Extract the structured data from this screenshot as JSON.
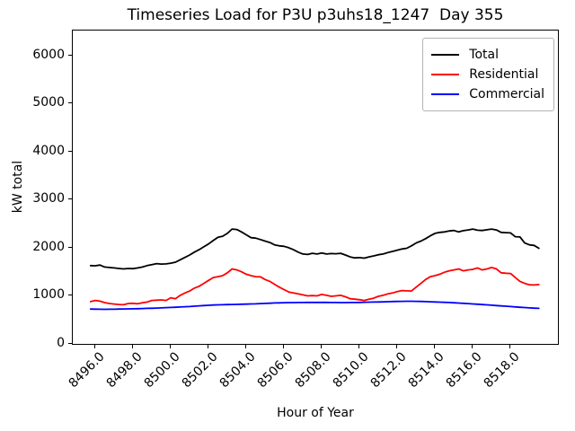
{
  "chart_data": {
    "type": "line",
    "title": "Timeseries Load for P3U p3uhs18_1247  Day 355",
    "xlabel": "Hour of Year",
    "ylabel": "kW total",
    "xlim": [
      8494.81,
      8520.51
    ],
    "ylim": [
      0,
      6520
    ],
    "grid": false,
    "legend_position": "upper right",
    "x_tick_values": [
      8496,
      8498,
      8500,
      8502,
      8504,
      8506,
      8508,
      8510,
      8512,
      8514,
      8516,
      8518
    ],
    "x_tick_labels": [
      "8496.0",
      "8498.0",
      "8500.0",
      "8502.0",
      "8504.0",
      "8506.0",
      "8508.0",
      "8510.0",
      "8512.0",
      "8514.0",
      "8516.0",
      "8518.0"
    ],
    "y_tick_values": [
      0,
      1000,
      2000,
      3000,
      4000,
      5000,
      6000
    ],
    "y_tick_labels": [
      "0",
      "1000",
      "2000",
      "3000",
      "4000",
      "5000",
      "6000"
    ],
    "x_start": 8495.75,
    "x_step": 0.25,
    "series": [
      {
        "name": "Total",
        "color": "#000000",
        "values": [
          1630,
          1625,
          1640,
          1600,
          1590,
          1580,
          1570,
          1560,
          1570,
          1565,
          1580,
          1600,
          1630,
          1650,
          1670,
          1660,
          1665,
          1680,
          1700,
          1750,
          1800,
          1850,
          1910,
          1960,
          2020,
          2080,
          2150,
          2220,
          2240,
          2300,
          2390,
          2380,
          2330,
          2270,
          2210,
          2200,
          2170,
          2140,
          2110,
          2060,
          2040,
          2030,
          2000,
          1960,
          1910,
          1870,
          1860,
          1885,
          1870,
          1890,
          1870,
          1880,
          1875,
          1885,
          1850,
          1810,
          1790,
          1795,
          1785,
          1810,
          1830,
          1855,
          1870,
          1900,
          1925,
          1950,
          1975,
          1990,
          2040,
          2100,
          2140,
          2190,
          2250,
          2300,
          2320,
          2330,
          2350,
          2360,
          2330,
          2355,
          2370,
          2390,
          2365,
          2360,
          2375,
          2390,
          2370,
          2320,
          2315,
          2310,
          2230,
          2225,
          2100,
          2060,
          2050,
          1990
        ]
      },
      {
        "name": "Residential",
        "color": "#ff0000",
        "values": [
          880,
          905,
          890,
          860,
          840,
          830,
          820,
          815,
          840,
          845,
          835,
          855,
          870,
          905,
          910,
          915,
          905,
          960,
          940,
          1010,
          1060,
          1100,
          1160,
          1200,
          1260,
          1320,
          1380,
          1400,
          1420,
          1480,
          1560,
          1540,
          1500,
          1450,
          1420,
          1400,
          1395,
          1340,
          1300,
          1240,
          1180,
          1130,
          1080,
          1060,
          1040,
          1020,
          1000,
          1005,
          1000,
          1030,
          1010,
          990,
          1000,
          1010,
          980,
          940,
          930,
          920,
          905,
          930,
          950,
          990,
          1010,
          1040,
          1060,
          1090,
          1110,
          1105,
          1100,
          1180,
          1260,
          1340,
          1400,
          1420,
          1450,
          1490,
          1520,
          1540,
          1560,
          1520,
          1540,
          1550,
          1580,
          1540,
          1560,
          1590,
          1560,
          1480,
          1470,
          1465,
          1380,
          1300,
          1260,
          1230,
          1225,
          1235
        ]
      },
      {
        "name": "Commercial",
        "color": "#0000ff",
        "values": [
          725,
          723,
          721,
          720,
          721,
          722,
          724,
          726,
          728,
          730,
          733,
          736,
          739,
          742,
          746,
          750,
          754,
          758,
          763,
          768,
          773,
          778,
          785,
          792,
          798,
          804,
          808,
          812,
          815,
          818,
          820,
          822,
          825,
          828,
          831,
          834,
          838,
          843,
          847,
          851,
          854,
          857,
          859,
          860,
          861,
          862,
          863,
          864,
          864,
          864,
          863,
          862,
          861,
          860,
          860,
          861,
          862,
          864,
          866,
          868,
          870,
          872,
          875,
          878,
          881,
          884,
          886,
          888,
          888,
          886,
          883,
          880,
          876,
          872,
          868,
          865,
          861,
          856,
          850,
          845,
          838,
          832,
          825,
          818,
          812,
          805,
          798,
          791,
          784,
          777,
          770,
          763,
          756,
          750,
          744,
          740
        ]
      }
    ]
  }
}
